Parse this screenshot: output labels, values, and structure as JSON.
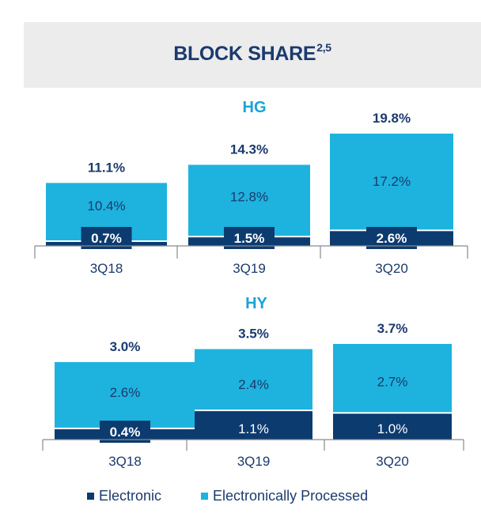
{
  "header": {
    "title": "BLOCK SHARE",
    "superscript": "2,5"
  },
  "colors": {
    "electronic": "#0c3b70",
    "processed": "#1eb3de",
    "axis": "#8a8a8a",
    "title": "#1b3a6e",
    "label": "#1b3a6e",
    "panel_title": "#1aa3d8",
    "bar_text": "#1b3a6e",
    "badge_text": "#ffffff"
  },
  "legend": {
    "electronic_label": "Electronic",
    "processed_label": "Electronically Processed"
  },
  "chart_data": [
    {
      "type": "bar",
      "stacked": true,
      "title": "HG",
      "categories": [
        "3Q18",
        "3Q19",
        "3Q20"
      ],
      "series": [
        {
          "name": "Electronic",
          "values": [
            0.7,
            1.5,
            2.6
          ],
          "labels": [
            "0.7%",
            "1.5%",
            "2.6%"
          ]
        },
        {
          "name": "Electronically Processed",
          "values": [
            10.4,
            12.8,
            17.2
          ],
          "labels": [
            "10.4%",
            "12.8%",
            "17.2%"
          ]
        }
      ],
      "totals": [
        11.1,
        14.3,
        19.8
      ],
      "total_labels": [
        "11.1%",
        "14.3%",
        "19.8%"
      ],
      "ylim": [
        0,
        19.8
      ]
    },
    {
      "type": "bar",
      "stacked": true,
      "title": "HY",
      "categories": [
        "3Q18",
        "3Q19",
        "3Q20"
      ],
      "series": [
        {
          "name": "Electronic",
          "values": [
            0.4,
            1.1,
            1.0
          ],
          "labels": [
            "0.4%",
            "1.1%",
            "1.0%"
          ]
        },
        {
          "name": "Electronically Processed",
          "values": [
            2.6,
            2.4,
            2.7
          ],
          "labels": [
            "2.6%",
            "2.4%",
            "2.7%"
          ]
        }
      ],
      "totals": [
        3.0,
        3.5,
        3.7
      ],
      "total_labels": [
        "3.0%",
        "3.5%",
        "3.7%"
      ],
      "ylim": [
        0,
        3.7
      ]
    }
  ]
}
